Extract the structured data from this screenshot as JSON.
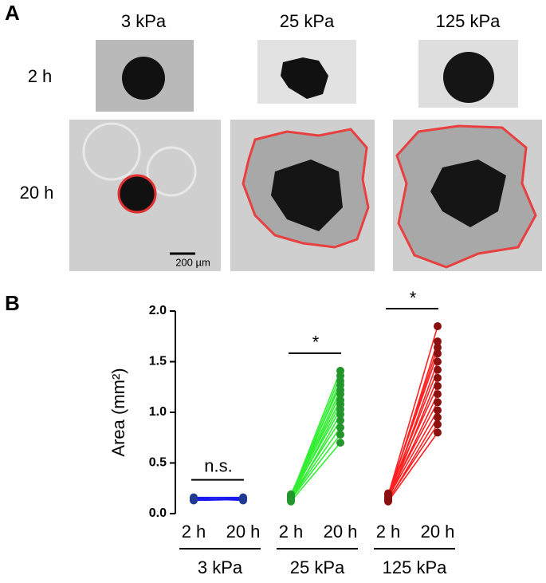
{
  "panel_a": {
    "label": "A",
    "columns": [
      "3 kPa",
      "25 kPa",
      "125 kPa"
    ],
    "rows": [
      "2 h",
      "20 h"
    ],
    "scale_bar": "200 µm"
  },
  "panel_b": {
    "label": "B"
  },
  "chart_data": {
    "type": "paired-line",
    "ylabel": "Area (mm²)",
    "ylim": [
      0,
      2
    ],
    "yticks": [
      {
        "value": 0,
        "label": "0.0"
      },
      0.5,
      {
        "value": 1,
        "label": "1.0"
      },
      1.5,
      {
        "value": 2,
        "label": "2.0"
      }
    ],
    "groups": [
      {
        "name": "3 kPa",
        "x_labels": [
          "2 h",
          "20 h"
        ],
        "annotation": "n.s.",
        "color": "#1a1aee",
        "marker_color": "#1f3a93",
        "start": [
          0.13,
          0.14,
          0.15,
          0.16,
          0.14,
          0.15
        ],
        "end": [
          0.14,
          0.15,
          0.13,
          0.16,
          0.15,
          0.14
        ]
      },
      {
        "name": "25 kPa",
        "x_labels": [
          "2 h",
          "20 h"
        ],
        "annotation": "*",
        "color": "#33ee33",
        "marker_color": "#22962a",
        "start": [
          0.12,
          0.14,
          0.15,
          0.16,
          0.13,
          0.17,
          0.15,
          0.18,
          0.14,
          0.16,
          0.19,
          0.13,
          0.15,
          0.17
        ],
        "end": [
          0.7,
          0.78,
          0.85,
          0.92,
          0.98,
          1.03,
          1.08,
          1.12,
          1.18,
          1.22,
          1.27,
          1.31,
          1.36,
          1.41
        ]
      },
      {
        "name": "125 kPa",
        "x_labels": [
          "2 h",
          "20 h"
        ],
        "annotation": "*",
        "color": "#ff2020",
        "marker_color": "#8b1010",
        "start": [
          0.12,
          0.14,
          0.13,
          0.16,
          0.18,
          0.15,
          0.2,
          0.13,
          0.17,
          0.14,
          0.19,
          0.16,
          0.15,
          0.18
        ],
        "end": [
          0.8,
          0.88,
          0.95,
          1.02,
          1.1,
          1.18,
          1.26,
          1.34,
          1.42,
          1.5,
          1.58,
          1.64,
          1.7,
          1.85
        ]
      }
    ]
  }
}
